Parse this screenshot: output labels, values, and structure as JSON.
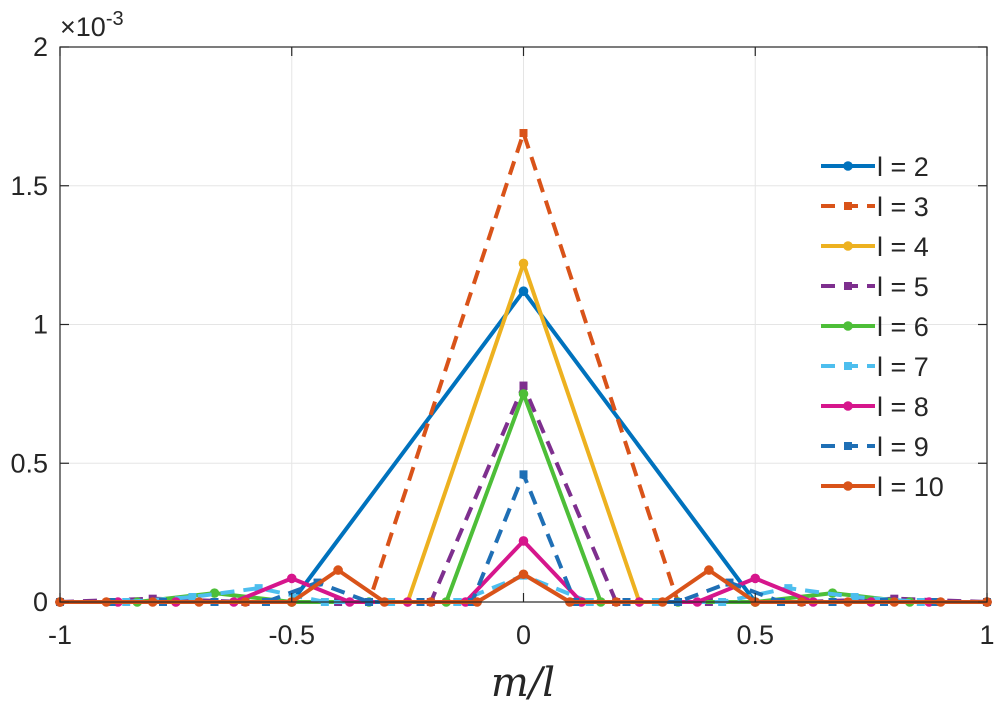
{
  "chart_data": {
    "type": "line",
    "xlabel": "m/l",
    "ylabel": "",
    "xlim": [
      -1,
      1
    ],
    "ylim": [
      0,
      0.002
    ],
    "x_ticks": [
      -1,
      -0.5,
      0,
      0.5,
      1
    ],
    "x_tick_labels": [
      "-1",
      "-0.5",
      "0",
      "0.5",
      "1"
    ],
    "y_ticks": [
      0,
      0.0005,
      0.001,
      0.0015,
      0.002
    ],
    "y_tick_labels": [
      "0",
      "0.5",
      "1",
      "1.5",
      "2"
    ],
    "y_exponent_base": "×10",
    "y_exponent_power": "-3",
    "grid": true,
    "legend_position": "right",
    "series": [
      {
        "name": "l = 2",
        "color": "#0072BD",
        "dash": "solid",
        "marker": "circle",
        "x": [
          -1,
          -0.5,
          0,
          0.5,
          1
        ],
        "y": [
          0,
          0,
          0.00112,
          0,
          0
        ]
      },
      {
        "name": "l = 3",
        "color": "#D95319",
        "dash": "dashed",
        "marker": "square",
        "x": [
          -1,
          -0.6667,
          -0.3333,
          0,
          0.3333,
          0.6667,
          1
        ],
        "y": [
          0,
          0,
          0,
          0.00169,
          0,
          0,
          0
        ]
      },
      {
        "name": "l = 4",
        "color": "#EDB120",
        "dash": "solid",
        "marker": "circle",
        "x": [
          -1,
          -0.75,
          -0.5,
          -0.25,
          0,
          0.25,
          0.5,
          0.75,
          1
        ],
        "y": [
          0,
          0,
          0,
          0,
          0.00122,
          0,
          0,
          0,
          0
        ]
      },
      {
        "name": "l = 5",
        "color": "#7E2F8E",
        "dash": "dashed",
        "marker": "square",
        "x": [
          -1,
          -0.8,
          -0.6,
          -0.4,
          -0.2,
          0,
          0.2,
          0.4,
          0.6,
          0.8,
          1
        ],
        "y": [
          0,
          1.2e-05,
          0,
          0,
          0,
          0.00078,
          0,
          0,
          0,
          1.2e-05,
          0
        ]
      },
      {
        "name": "l = 6",
        "color": "#4DBE38",
        "dash": "solid",
        "marker": "circle",
        "x": [
          -1,
          -0.8333,
          -0.6667,
          -0.5,
          -0.3333,
          -0.1667,
          0,
          0.1667,
          0.3333,
          0.5,
          0.6667,
          0.8333,
          1
        ],
        "y": [
          0,
          0,
          3.2e-05,
          0,
          0,
          0,
          0.00075,
          0,
          0,
          0,
          3.2e-05,
          0,
          0
        ]
      },
      {
        "name": "l = 7",
        "color": "#4DBEEE",
        "dash": "dashed",
        "marker": "square",
        "x": [
          -1,
          -0.8571,
          -0.7143,
          -0.5714,
          -0.4286,
          -0.2857,
          -0.1429,
          0,
          0.1429,
          0.2857,
          0.4286,
          0.5714,
          0.7143,
          0.8571,
          1
        ],
        "y": [
          0,
          0,
          1.8e-05,
          5e-05,
          0,
          0,
          0,
          9.5e-05,
          0,
          0,
          0,
          5e-05,
          1.8e-05,
          0,
          0
        ]
      },
      {
        "name": "l = 8",
        "color": "#D6168C",
        "dash": "solid",
        "marker": "circle",
        "x": [
          -1,
          -0.875,
          -0.75,
          -0.625,
          -0.5,
          -0.375,
          -0.25,
          -0.125,
          0,
          0.125,
          0.25,
          0.375,
          0.5,
          0.625,
          0.75,
          0.875,
          1
        ],
        "y": [
          0,
          0,
          0,
          0,
          8.5e-05,
          0,
          0,
          0,
          0.00022,
          0,
          0,
          0,
          8.5e-05,
          0,
          0,
          0,
          0
        ]
      },
      {
        "name": "l = 9",
        "color": "#1F6FB5",
        "dash": "dashed",
        "marker": "square",
        "x": [
          -1,
          -0.8889,
          -0.7778,
          -0.6667,
          -0.5556,
          -0.4444,
          -0.3333,
          -0.2222,
          -0.1111,
          0,
          0.1111,
          0.2222,
          0.3333,
          0.4444,
          0.5556,
          0.6667,
          0.7778,
          0.8889,
          1
        ],
        "y": [
          0,
          0,
          0,
          0,
          0,
          7e-05,
          0,
          0,
          0,
          0.00046,
          0,
          0,
          0,
          7e-05,
          0,
          0,
          0,
          0,
          0
        ]
      },
      {
        "name": "l = 10",
        "color": "#D95319",
        "dash": "solid",
        "marker": "circle",
        "x": [
          -1,
          -0.9,
          -0.8,
          -0.7,
          -0.6,
          -0.5,
          -0.4,
          -0.3,
          -0.2,
          -0.1,
          0,
          0.1,
          0.2,
          0.3,
          0.4,
          0.5,
          0.6,
          0.7,
          0.8,
          0.9,
          1
        ],
        "y": [
          0,
          0,
          0,
          0,
          0,
          0,
          0.000115,
          0,
          0,
          0,
          0.0001,
          0,
          0,
          0,
          0.000115,
          0,
          0,
          0,
          0,
          0,
          0
        ]
      }
    ]
  }
}
